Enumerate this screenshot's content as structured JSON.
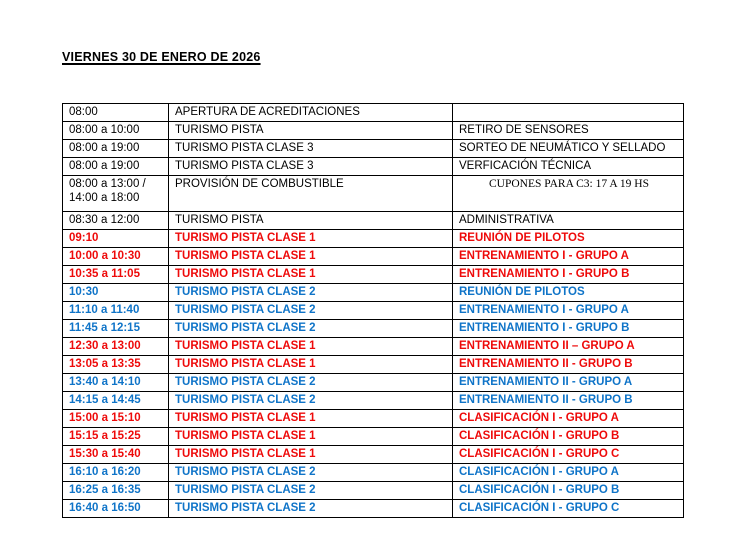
{
  "page": {
    "title": "VIERNES 30 DE ENERO DE 2026"
  },
  "colors": {
    "black": "#000000",
    "red": "#ee0a0a",
    "blue": "#0f74c8"
  },
  "schedule": {
    "rows": [
      {
        "time": "08:00",
        "event": "APERTURA DE ACREDITACIONES",
        "detail": "",
        "color": "black"
      },
      {
        "time": "08:00 a 10:00",
        "event": "TURISMO PISTA",
        "detail": "RETIRO DE SENSORES",
        "color": "black"
      },
      {
        "time": "08:00 a 19:00",
        "event": "TURISMO PISTA CLASE 3",
        "detail": "SORTEO DE NEUMÁTICO Y SELLADO",
        "color": "black"
      },
      {
        "time": "08:00 a 19:00",
        "event": "TURISMO PISTA CLASE 3",
        "detail": "VERFICACIÓN TÉCNICA",
        "color": "black"
      },
      {
        "time": "08:00 a 13:00 /\n14:00 a 18:00",
        "event": "PROVISIÓN DE COMBUSTIBLE",
        "detail": "CUPONES PARA C3: 17 A 19 HS",
        "color": "black"
      },
      {
        "time": "08:30 a 12:00",
        "event": "TURISMO PISTA",
        "detail": "ADMINISTRATIVA",
        "color": "black"
      },
      {
        "time": "09:10",
        "event": "TURISMO PISTA CLASE 1",
        "detail": "REUNIÓN DE PILOTOS",
        "color": "red"
      },
      {
        "time": "10:00 a 10:30",
        "event": "TURISMO PISTA CLASE 1",
        "detail": "ENTRENAMIENTO I - GRUPO A",
        "color": "red"
      },
      {
        "time": "10:35 a 11:05",
        "event": "TURISMO PISTA CLASE 1",
        "detail": "ENTRENAMIENTO I - GRUPO B",
        "color": "red"
      },
      {
        "time": "10:30",
        "event": "TURISMO PISTA CLASE 2",
        "detail": "REUNIÓN DE PILOTOS",
        "color": "blue"
      },
      {
        "time": "11:10 a 11:40",
        "event": "TURISMO PISTA CLASE 2",
        "detail": "ENTRENAMIENTO I - GRUPO A",
        "color": "blue"
      },
      {
        "time": "11:45 a 12:15",
        "event": "TURISMO PISTA CLASE 2",
        "detail": "ENTRENAMIENTO I - GRUPO B",
        "color": "blue"
      },
      {
        "time": "12:30 a 13:00",
        "event": "TURISMO PISTA CLASE 1",
        "detail": "ENTRENAMIENTO II – GRUPO A",
        "color": "red"
      },
      {
        "time": "13:05 a 13:35",
        "event": "TURISMO PISTA CLASE 1",
        "detail": "ENTRENAMIENTO II - GRUPO B",
        "color": "red"
      },
      {
        "time": "13:40 a 14:10",
        "event": "TURISMO PISTA CLASE 2",
        "detail": "ENTRENAMIENTO II - GRUPO A",
        "color": "blue"
      },
      {
        "time": "14:15 a 14:45",
        "event": "TURISMO PISTA CLASE 2",
        "detail": "ENTRENAMIENTO II - GRUPO B",
        "color": "blue"
      },
      {
        "time": "15:00 a 15:10",
        "event": "TURISMO PISTA CLASE 1",
        "detail": "CLASIFICACIÓN I - GRUPO A",
        "color": "red"
      },
      {
        "time": "15:15 a 15:25",
        "event": "TURISMO PISTA CLASE 1",
        "detail": "CLASIFICACIÓN I - GRUPO B",
        "color": "red"
      },
      {
        "time": "15:30 a 15:40",
        "event": "TURISMO PISTA CLASE 1",
        "detail": "CLASIFICACIÓN I - GRUPO C",
        "color": "red"
      },
      {
        "time": "16:10 a 16:20",
        "event": "TURISMO PISTA CLASE 2",
        "detail": "CLASIFICACIÓN I - GRUPO A",
        "color": "blue"
      },
      {
        "time": "16:25 a 16:35",
        "event": "TURISMO PISTA CLASE 2",
        "detail": "CLASIFICACIÓN I - GRUPO B",
        "color": "blue"
      },
      {
        "time": "16:40 a 16:50",
        "event": "TURISMO PISTA CLASE 2",
        "detail": "CLASIFICACIÓN I - GRUPO C",
        "color": "blue"
      }
    ]
  }
}
